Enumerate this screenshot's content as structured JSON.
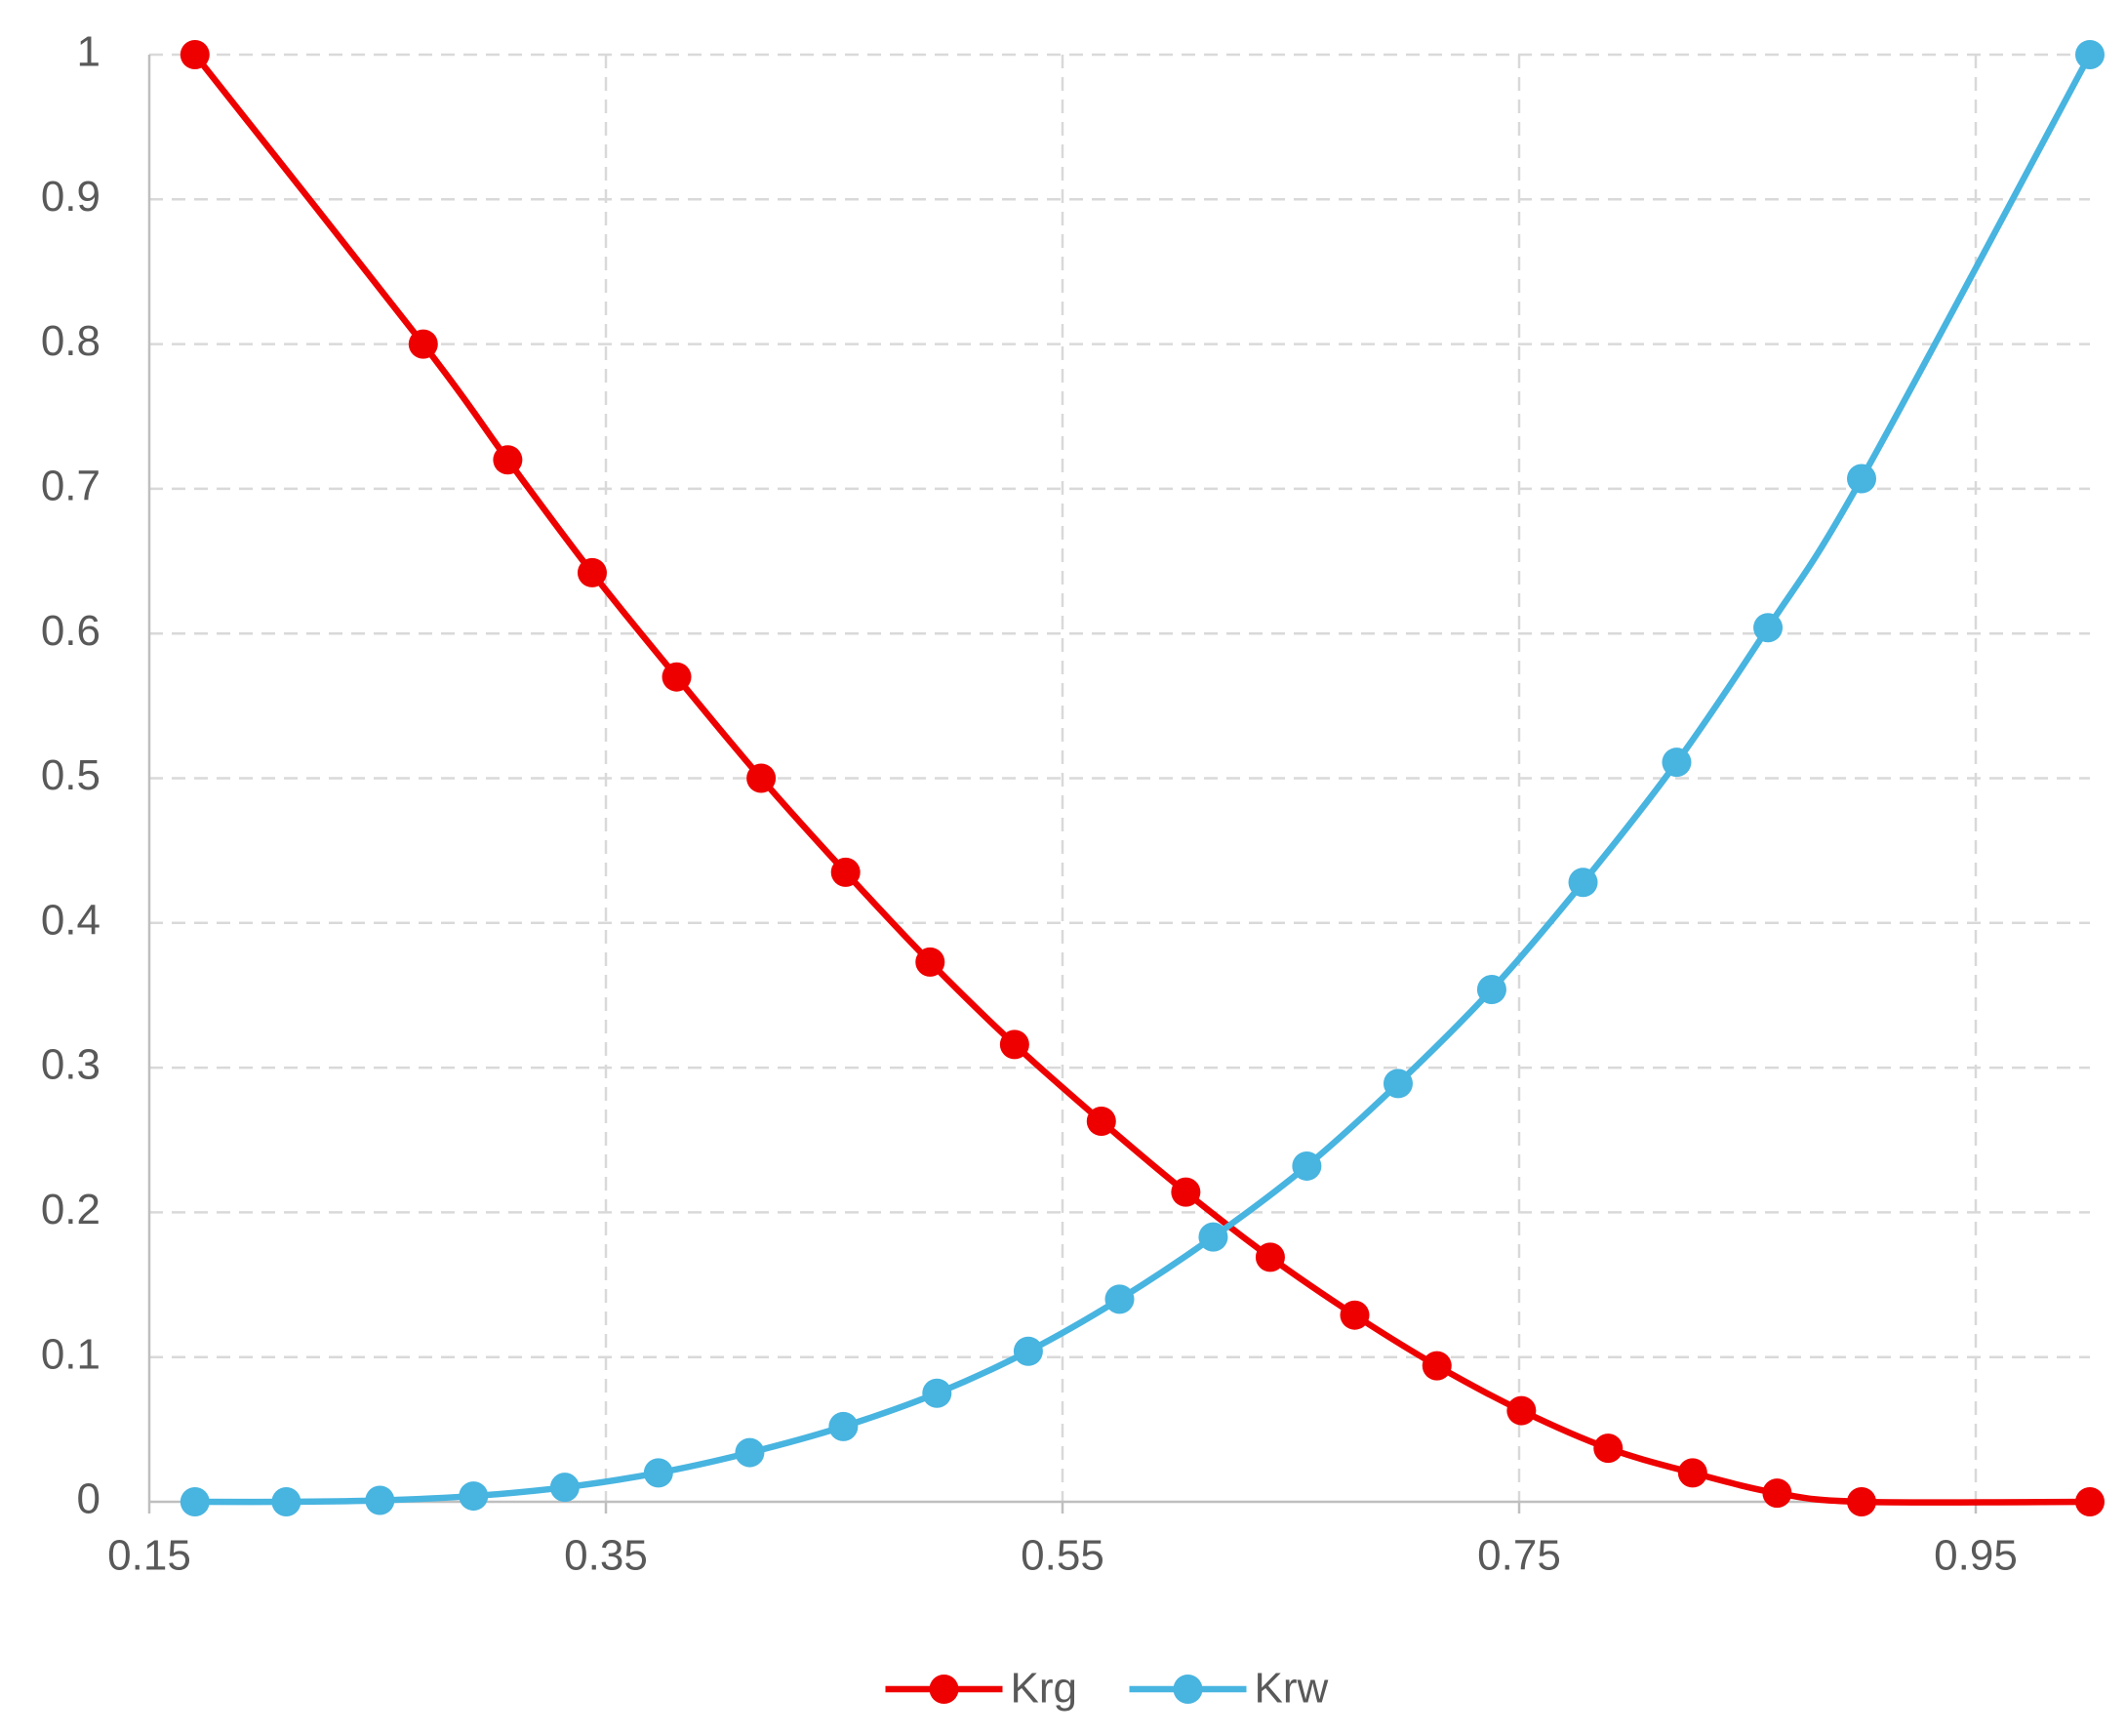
{
  "chart_data": {
    "type": "line",
    "xlim": [
      0.15,
      1.0
    ],
    "xticks": [
      0.15,
      0.35,
      0.55,
      0.75,
      0.95
    ],
    "ylim": [
      0,
      1
    ],
    "yticks": [
      0,
      0.1,
      0.2,
      0.3,
      0.4,
      0.5,
      0.6,
      0.7,
      0.8,
      0.9,
      1
    ],
    "grid": true,
    "legend": "bottom",
    "series": [
      {
        "name": "Krg",
        "color": "#ee0000",
        "x": [
          0.17,
          0.27,
          0.307,
          0.344,
          0.381,
          0.418,
          0.455,
          0.492,
          0.529,
          0.567,
          0.604,
          0.641,
          0.678,
          0.714,
          0.751,
          0.789,
          0.826,
          0.863,
          0.9,
          1.0
        ],
        "values": [
          1,
          0.8,
          0.72,
          0.642,
          0.57,
          0.5,
          0.435,
          0.373,
          0.316,
          0.263,
          0.214,
          0.169,
          0.129,
          0.094,
          0.063,
          0.037,
          0.02,
          0.006,
          0,
          0
        ]
      },
      {
        "name": "Krw",
        "color": "#48b4e0",
        "x": [
          0.17,
          0.21,
          0.251,
          0.292,
          0.332,
          0.373,
          0.413,
          0.454,
          0.495,
          0.535,
          0.575,
          0.616,
          0.657,
          0.697,
          0.738,
          0.778,
          0.819,
          0.859,
          0.9,
          1.0
        ],
        "values": [
          0,
          0,
          0.001,
          0.004,
          0.01,
          0.02,
          0.034,
          0.052,
          0.075,
          0.104,
          0.14,
          0.183,
          0.232,
          0.289,
          0.354,
          0.428,
          0.511,
          0.604,
          0.707,
          1.0
        ]
      }
    ]
  }
}
